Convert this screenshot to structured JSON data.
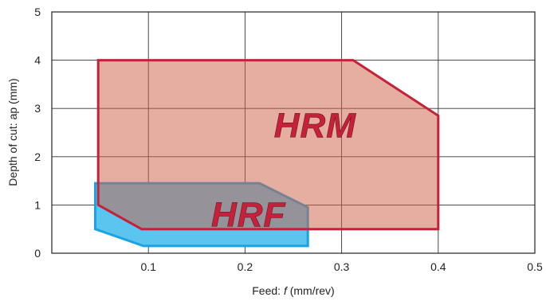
{
  "chart_data": {
    "type": "area",
    "title": "",
    "xlabel_prefix": "Feed: ",
    "xlabel_symbol": "f",
    "xlabel_suffix": " (mm/rev)",
    "ylabel": "Depth of cut: ap (mm)",
    "xlim": [
      0,
      0.5
    ],
    "ylim": [
      0,
      5
    ],
    "grid": true,
    "x_ticks": [
      "0.1",
      "0.2",
      "0.3",
      "0.4",
      "0.5"
    ],
    "y_ticks": [
      "0",
      "1",
      "2",
      "3",
      "4",
      "5"
    ],
    "x_tick_values": [
      0.1,
      0.2,
      0.3,
      0.4,
      0.5
    ],
    "y_tick_values": [
      0,
      1,
      2,
      3,
      4,
      5
    ],
    "regions": [
      {
        "name": "HRF",
        "fill": "#5bc4ef",
        "stroke": "#1aa3e0",
        "text_color": "#c8203b",
        "label_anchor": [
          0.165,
          0.55
        ],
        "points": [
          [
            0.045,
            1.45
          ],
          [
            0.215,
            1.45
          ],
          [
            0.265,
            0.95
          ],
          [
            0.265,
            0.15
          ],
          [
            0.095,
            0.15
          ],
          [
            0.045,
            0.5
          ]
        ]
      },
      {
        "name": "HRM",
        "fill": "rgba(205,100,75,0.52)",
        "stroke": "#c32238",
        "text_color": "#c8203b",
        "label_anchor": [
          0.23,
          2.4
        ],
        "points": [
          [
            0.048,
            4.0
          ],
          [
            0.312,
            4.0
          ],
          [
            0.4,
            2.85
          ],
          [
            0.4,
            0.5
          ],
          [
            0.093,
            0.5
          ],
          [
            0.048,
            1.0
          ]
        ]
      }
    ]
  }
}
